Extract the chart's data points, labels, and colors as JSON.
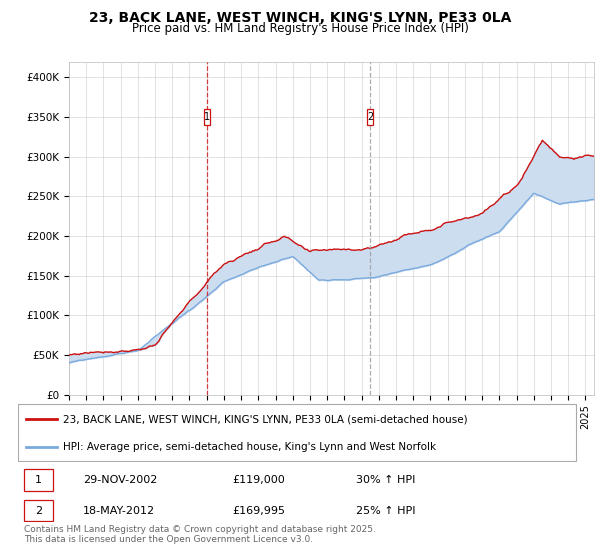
{
  "title": "23, BACK LANE, WEST WINCH, KING'S LYNN, PE33 0LA",
  "subtitle": "Price paid vs. HM Land Registry's House Price Index (HPI)",
  "ylim": [
    0,
    420000
  ],
  "yticks": [
    0,
    50000,
    100000,
    150000,
    200000,
    250000,
    300000,
    350000,
    400000
  ],
  "ytick_labels": [
    "£0",
    "£50K",
    "£100K",
    "£150K",
    "£200K",
    "£250K",
    "£300K",
    "£350K",
    "£400K"
  ],
  "xlim_start": 1995.0,
  "xlim_end": 2025.5,
  "vline1_x": 2003.0,
  "vline2_x": 2012.5,
  "sale1_date": "29-NOV-2002",
  "sale1_price": "£119,000",
  "sale1_hpi": "30% ↑ HPI",
  "sale2_date": "18-MAY-2012",
  "sale2_price": "£169,995",
  "sale2_hpi": "25% ↑ HPI",
  "line1_color": "#cc1111",
  "line2_color": "#7aaadd",
  "vline1_color": "#cc1111",
  "vline2_color": "#999999",
  "fill_color": "#ccddf0",
  "plot_bg": "#ffffff",
  "fig_bg": "#ffffff",
  "legend1": "23, BACK LANE, WEST WINCH, KING'S LYNN, PE33 0LA (semi-detached house)",
  "legend2": "HPI: Average price, semi-detached house, King's Lynn and West Norfolk",
  "footer": "Contains HM Land Registry data © Crown copyright and database right 2025.\nThis data is licensed under the Open Government Licence v3.0.",
  "title_fontsize": 10,
  "subtitle_fontsize": 8.5,
  "tick_fontsize": 7.5,
  "legend_fontsize": 7.5,
  "table_fontsize": 8
}
